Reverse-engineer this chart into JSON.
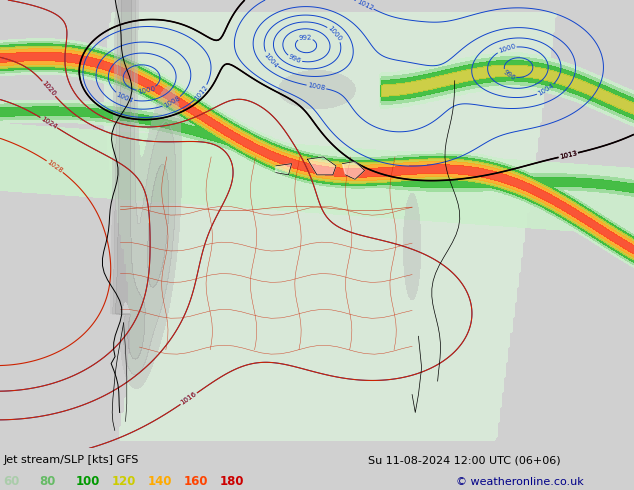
{
  "title_left": "Jet stream/SLP [kts] GFS",
  "title_right": "Su 11-08-2024 12:00 UTC (06+06)",
  "copyright": "© weatheronline.co.uk",
  "background_color": "#e8e8e8",
  "legend_values": [
    "60",
    "80",
    "100",
    "120",
    "140",
    "160",
    "180"
  ],
  "legend_colors": [
    "#aaccaa",
    "#66bb66",
    "#009900",
    "#cccc00",
    "#ffaa00",
    "#ff4400",
    "#cc0000"
  ],
  "bottom_bar_color": "#d0d0d0",
  "figsize": [
    6.34,
    4.9
  ],
  "dpi": 100,
  "ocean_color": "#e8e8e8",
  "land_light_color": "#d8e8d8",
  "terrain_color": "#b0b0b0",
  "jet_levels": [
    60,
    80,
    100,
    120,
    140,
    160,
    180,
    200
  ],
  "jet_fill_colors": [
    "#cceecc",
    "#99dd99",
    "#33bb33",
    "#cccc33",
    "#ffaa22",
    "#ff4422",
    "#cc1100"
  ],
  "blue_contour_color": "#1144cc",
  "red_contour_color": "#cc2200",
  "black_contour_color": "#000000"
}
